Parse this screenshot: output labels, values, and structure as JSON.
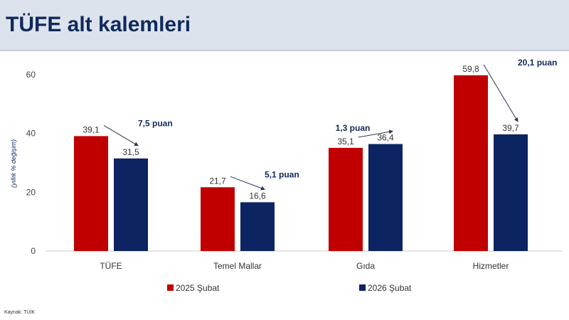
{
  "header": {
    "title": "TÜFE alt kalemleri"
  },
  "source": "Kaynak: TÜİK",
  "chart_data": {
    "type": "bar",
    "title": "",
    "ylabel": "(yıllık % değişim)",
    "xlabel": "",
    "ylim": [
      0,
      60
    ],
    "yticks": [
      0,
      20,
      40,
      60
    ],
    "categories": [
      "TÜFE",
      "Temel Mallar",
      "Gıda",
      "Hizmetler"
    ],
    "series": [
      {
        "name": "2025 Şubat",
        "color": "#c00000",
        "values": [
          39.1,
          21.7,
          35.1,
          59.8
        ],
        "labels": [
          "39,1",
          "21,7",
          "35,1",
          "59,8"
        ]
      },
      {
        "name": "2026 Şubat",
        "color": "#0c2461",
        "values": [
          31.5,
          16.6,
          36.4,
          39.7
        ],
        "labels": [
          "31,5",
          "16,6",
          "36,4",
          "39,7"
        ]
      }
    ],
    "annotations": [
      "7,5 puan",
      "5,1 puan",
      "1,3 puan",
      "20,1 puan"
    ],
    "grid": false,
    "legend": "bottom"
  }
}
